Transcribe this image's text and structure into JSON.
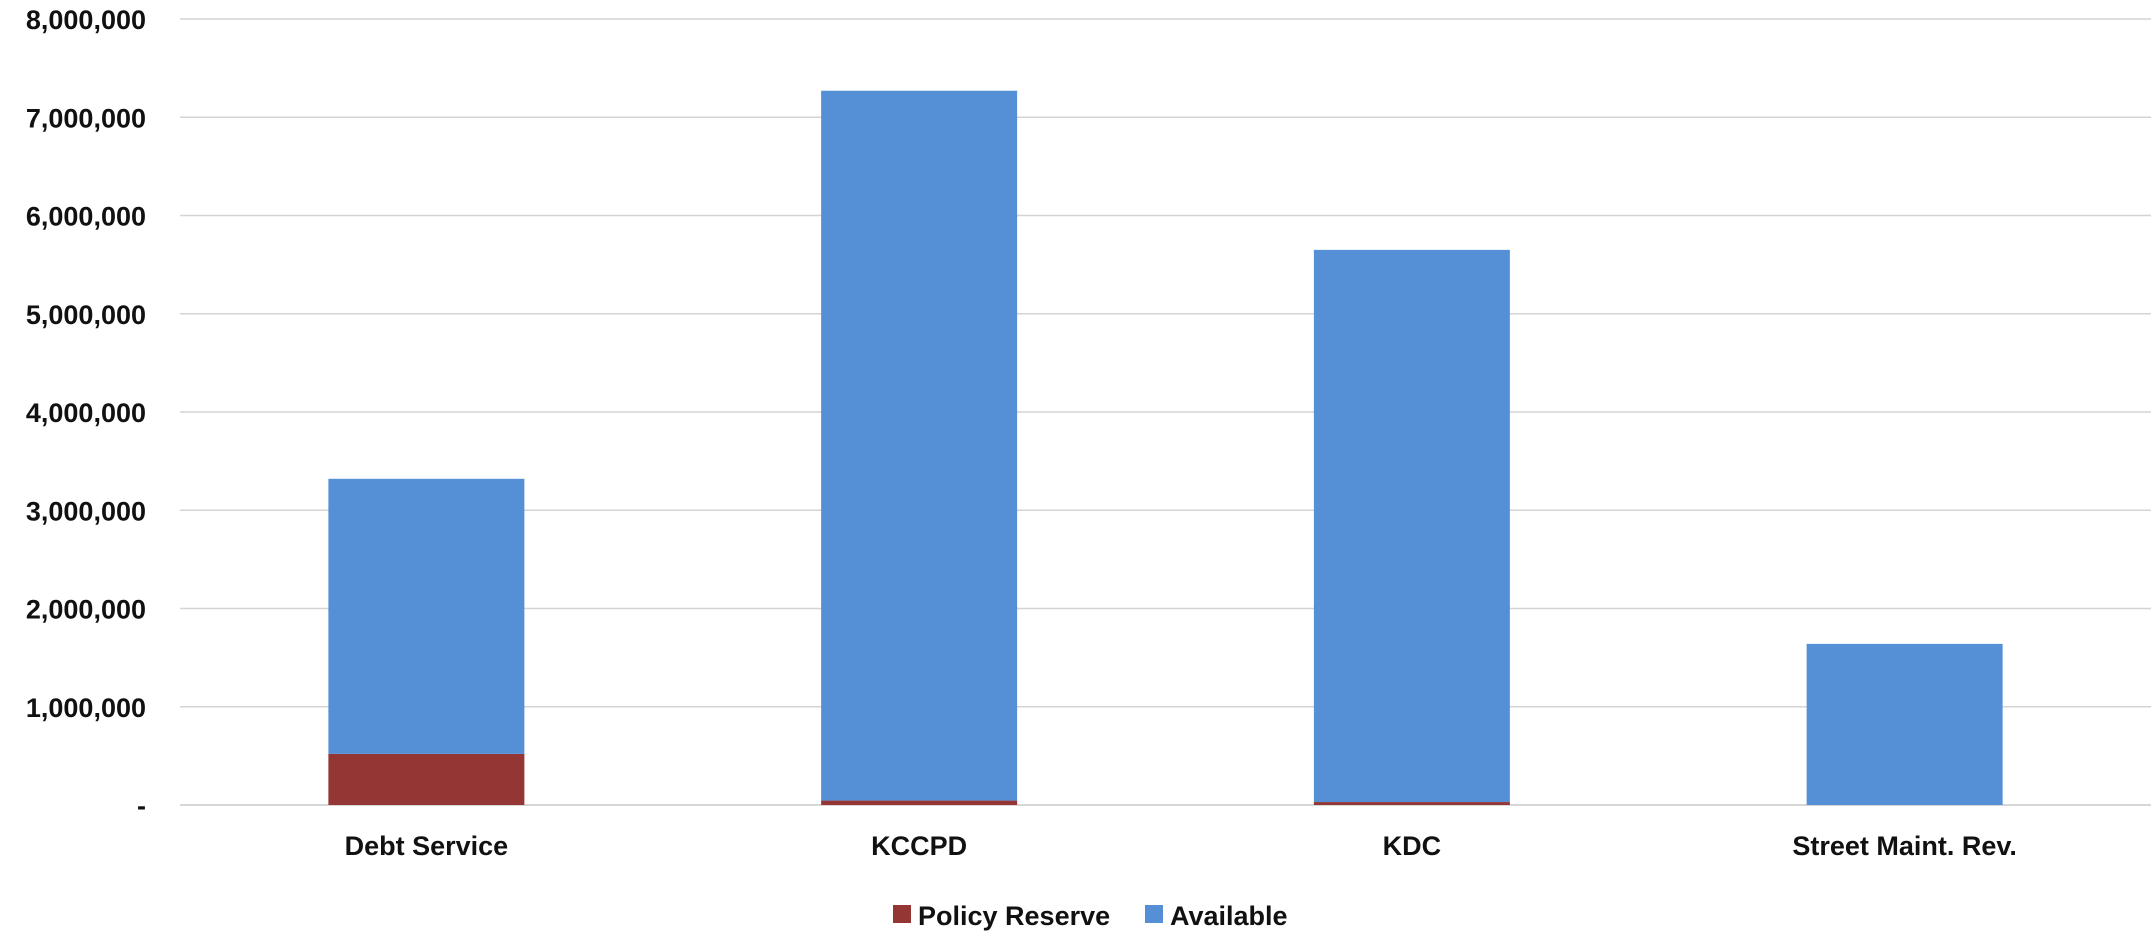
{
  "chart_data": {
    "type": "bar",
    "stacked": true,
    "title": "",
    "xlabel": "",
    "ylabel": "",
    "categories": [
      "Debt Service",
      "KCCPD",
      "KDC",
      "Street Maint. Rev."
    ],
    "series": [
      {
        "name": "Policy Reserve",
        "color": "#943634",
        "values": [
          520000,
          45000,
          30000,
          0
        ]
      },
      {
        "name": "Available",
        "color": "#5590d6",
        "values": [
          2800000,
          7225000,
          5620000,
          1640000
        ]
      }
    ],
    "ylim": [
      0,
      8000000
    ],
    "yticks": [
      0,
      1000000,
      2000000,
      3000000,
      4000000,
      5000000,
      6000000,
      7000000,
      8000000
    ],
    "ytick_labels": [
      "-",
      "1,000,000",
      "2,000,000",
      "3,000,000",
      "4,000,000",
      "5,000,000",
      "6,000,000",
      "7,000,000",
      "8,000,000"
    ],
    "grid": true,
    "legend_position": "bottom-center"
  }
}
